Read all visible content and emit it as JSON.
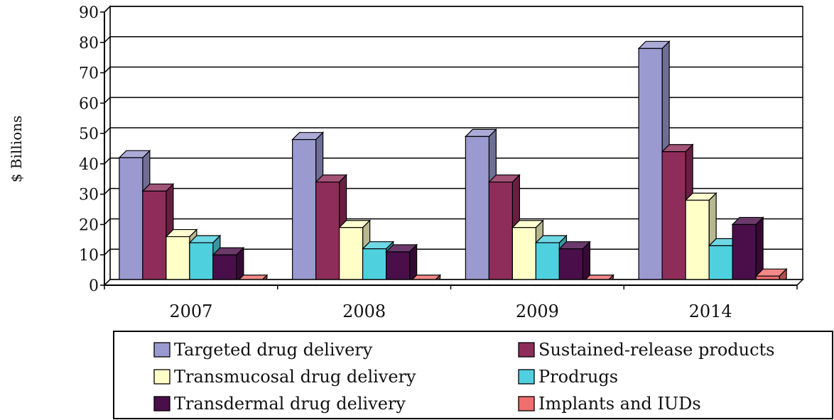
{
  "chart_data": {
    "type": "bar",
    "title": "",
    "xlabel": "",
    "ylabel": "$ Billions",
    "ylim": [
      0,
      90
    ],
    "yticks": [
      "0",
      "10",
      "20",
      "30",
      "40",
      "50",
      "60",
      "70",
      "80",
      "90"
    ],
    "grid": true,
    "legend_position": "bottom",
    "categories": [
      "2007",
      "2008",
      "2009",
      "2014"
    ],
    "series": [
      {
        "name": "Targeted drug delivery",
        "color": "#9a99d0",
        "values": [
          42,
          48,
          49,
          78
        ]
      },
      {
        "name": "Sustained-release products",
        "color": "#8f2d5a",
        "values": [
          31,
          34,
          34,
          44
        ]
      },
      {
        "name": "Transmucosal drug delivery",
        "color": "#ffffc8",
        "values": [
          16,
          19,
          19,
          28
        ]
      },
      {
        "name": "Prodrugs",
        "color": "#4fd0df",
        "values": [
          14,
          12,
          14,
          13
        ]
      },
      {
        "name": "Transdermal drug delivery",
        "color": "#4a0f4a",
        "values": [
          10,
          11,
          12,
          20
        ]
      },
      {
        "name": "Implants and IUDs",
        "color": "#f06e6e",
        "values": [
          1,
          1,
          1,
          3
        ]
      }
    ]
  }
}
